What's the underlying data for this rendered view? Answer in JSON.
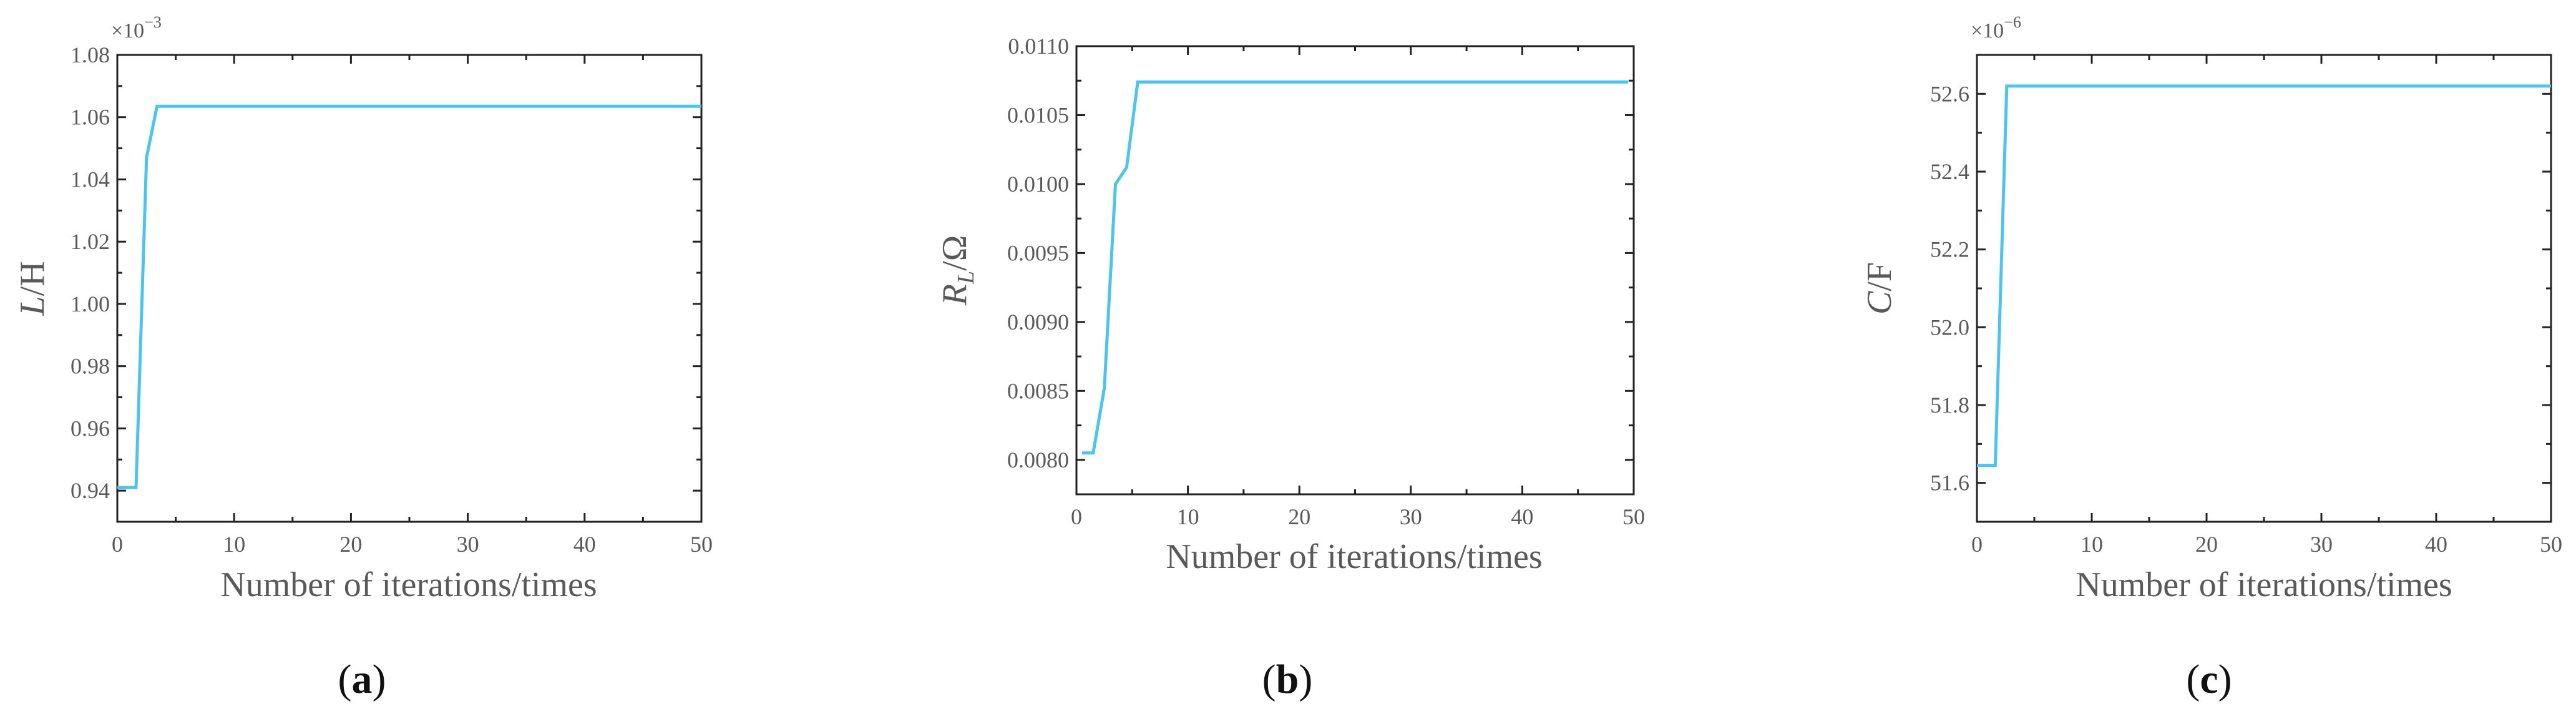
{
  "colors": {
    "series": "#4ec3ee",
    "axis": "#222222",
    "text": "#595959"
  },
  "chart_data": [
    {
      "type": "line",
      "panel_label_letter": "a",
      "exponent_label": "×10",
      "exponent_power": "−3",
      "ylabel_var": "L",
      "ylabel_unit": "/H",
      "xlabel": "Number of iterations/times",
      "xlim": [
        0,
        50
      ],
      "ylim": [
        0.93,
        1.08
      ],
      "xticks": [
        0,
        10,
        20,
        30,
        40,
        50
      ],
      "xtick_labels": [
        "0",
        "10",
        "20",
        "30",
        "40",
        "50"
      ],
      "yticks": [
        0.94,
        0.96,
        0.98,
        1.0,
        1.02,
        1.04,
        1.06,
        1.08
      ],
      "ytick_labels": [
        "0.94",
        "0.96",
        "0.98",
        "1.00",
        "1.02",
        "1.04",
        "1.06",
        "1.08"
      ],
      "series": [
        {
          "x": [
            0,
            1.6,
            2.5,
            3.4,
            4,
            10,
            20,
            30,
            40,
            50
          ],
          "y": [
            0.941,
            0.941,
            1.047,
            1.0635,
            1.0635,
            1.0635,
            1.0635,
            1.0635,
            1.0635,
            1.0635
          ]
        }
      ]
    },
    {
      "type": "line",
      "panel_label_letter": "b",
      "ylabel_var": "R",
      "ylabel_sub": "L",
      "ylabel_unit": "/Ω",
      "xlabel": "Number of iterations/times",
      "xlim": [
        0,
        50
      ],
      "ylim": [
        0.00775,
        0.011
      ],
      "xticks": [
        0,
        10,
        20,
        30,
        40,
        50
      ],
      "xtick_labels": [
        "0",
        "10",
        "20",
        "30",
        "40",
        "50"
      ],
      "yticks": [
        0.008,
        0.0085,
        0.009,
        0.0095,
        0.01,
        0.0105,
        0.011
      ],
      "ytick_labels": [
        "0.0080",
        "0.0085",
        "0.0090",
        "0.0095",
        "0.0100",
        "0.0105",
        "0.0110"
      ],
      "series": [
        {
          "x": [
            0.5,
            1.5,
            2.5,
            3.5,
            4.5,
            5.5,
            10,
            20,
            30,
            40,
            49.5
          ],
          "y": [
            0.00805,
            0.00805,
            0.00852,
            0.01,
            0.01012,
            0.01074,
            0.01074,
            0.01074,
            0.01074,
            0.01074,
            0.01074
          ]
        }
      ]
    },
    {
      "type": "line",
      "panel_label_letter": "c",
      "exponent_label": "×10",
      "exponent_power": "−6",
      "ylabel_var": "C",
      "ylabel_unit": "/F",
      "xlabel": "Number of iterations/times",
      "xlim": [
        0,
        50
      ],
      "ylim": [
        51.5,
        52.7
      ],
      "xticks": [
        0,
        10,
        20,
        30,
        40,
        50
      ],
      "xtick_labels": [
        "0",
        "10",
        "20",
        "30",
        "40",
        "50"
      ],
      "yticks": [
        51.6,
        51.8,
        52.0,
        52.2,
        52.4,
        52.6
      ],
      "ytick_labels": [
        "51.6",
        "51.8",
        "52.0",
        "52.2",
        "52.4",
        "52.6"
      ],
      "series": [
        {
          "x": [
            0,
            1.6,
            2.6,
            10,
            20,
            30,
            40,
            50
          ],
          "y": [
            51.645,
            51.645,
            52.62,
            52.62,
            52.62,
            52.62,
            52.62,
            52.62
          ]
        }
      ]
    }
  ]
}
